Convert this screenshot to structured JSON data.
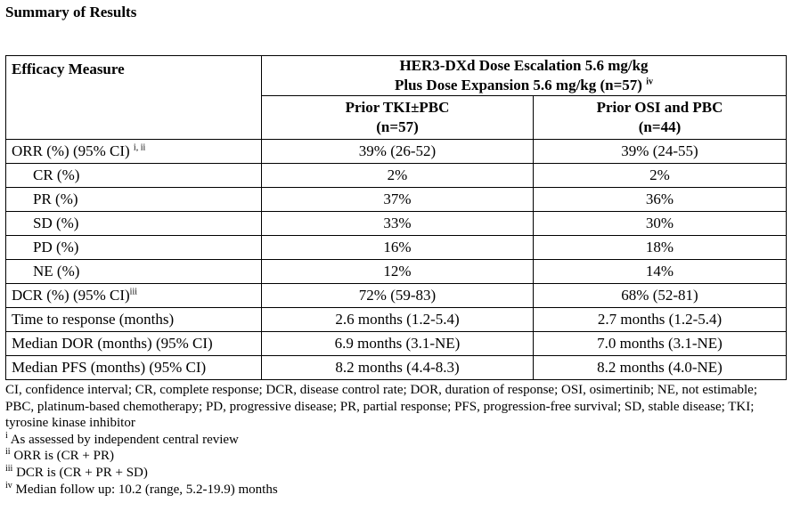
{
  "document": {
    "section_title": "Summary of Results"
  },
  "table": {
    "col_header_measure": "Efficacy Measure",
    "group_header_line1": "HER3-DXd Dose Escalation 5.6 mg/kg",
    "group_header_line2": "Plus Dose Expansion 5.6 mg/kg (n=57)",
    "group_header_note": "iv",
    "subgroup_a_line1": "Prior TKI±PBC",
    "subgroup_a_line2": "(n=57)",
    "subgroup_b_line1": "Prior OSI and PBC",
    "subgroup_b_line2": "(n=44)",
    "rows": [
      {
        "label": "ORR (%) (95% CI)",
        "note": "i, ii",
        "a": "39% (26-52)",
        "b": "39% (24-55)"
      },
      {
        "label": "CR (%)",
        "note": "",
        "a": "2%",
        "b": "2%"
      },
      {
        "label": "PR (%)",
        "note": "",
        "a": "37%",
        "b": "36%"
      },
      {
        "label": "SD (%)",
        "note": "",
        "a": "33%",
        "b": "30%"
      },
      {
        "label": "PD (%)",
        "note": "",
        "a": "16%",
        "b": "18%"
      },
      {
        "label": "NE (%)",
        "note": "",
        "a": "12%",
        "b": "14%"
      },
      {
        "label": "DCR (%) (95% CI)",
        "note": "iii",
        "a": "72% (59-83)",
        "b": "68% (52-81)"
      },
      {
        "label": "Time to response (months)",
        "note": "",
        "a": "2.6 months (1.2-5.4)",
        "b": "2.7 months (1.2-5.4)"
      },
      {
        "label": "Median DOR (months) (95% CI)",
        "note": "",
        "a": "6.9 months (3.1-NE)",
        "b": "7.0 months (3.1-NE)"
      },
      {
        "label": "Median PFS (months) (95% CI)",
        "note": "",
        "a": "8.2 months (4.4-8.3)",
        "b": "8.2 months (4.0-NE)"
      }
    ]
  },
  "footnotes": {
    "abbreviations": "CI, confidence interval; CR, complete response; DCR, disease control rate; DOR, duration of response; OSI, osimertinib; NE, not estimable; PBC, platinum-based chemotherapy; PD, progressive disease; PR, partial response; PFS, progression-free survival; SD, stable disease; TKI; tyrosine kinase inhibitor",
    "notes": [
      {
        "mark": "i",
        "text": "As assessed by independent central review"
      },
      {
        "mark": "ii",
        "text": "ORR is (CR + PR)"
      },
      {
        "mark": "iii",
        "text": "DCR is (CR + PR + SD)"
      },
      {
        "mark": "iv",
        "text": "Median follow up: 10.2 (range, 5.2-19.9) months"
      }
    ]
  }
}
